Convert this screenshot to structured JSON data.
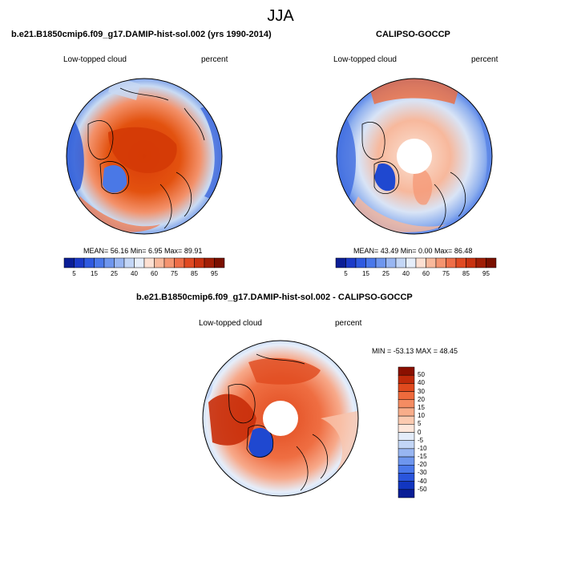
{
  "season": "JJA",
  "colors": {
    "dark_red": "#d83a08",
    "red": "#ed6a3c",
    "light_red": "#f7a98a",
    "pale": "#fcd8c8",
    "white": "#ffffff",
    "light_blue": "#c6d9f3",
    "blue": "#6e96e8",
    "dark_blue": "#2c5bd8",
    "land_line": "#000000"
  },
  "panel_model": {
    "title": "b.e21.B1850cmip6.f09_g17.DAMIP-hist-sol.002 (yrs 1990-2014)",
    "variable": "Low-topped cloud",
    "units": "percent",
    "stats": "MEAN=  56.16  Min=    6.95  Max=  89.91",
    "mean": 56.16,
    "min": 6.95,
    "max": 89.91
  },
  "panel_obs": {
    "title": "CALIPSO-GOCCP",
    "variable": "Low-topped cloud",
    "units": "percent",
    "stats": "MEAN=  43.49  Min=    0.00  Max=  86.48",
    "mean": 43.49,
    "min": 0.0,
    "max": 86.48
  },
  "panel_diff": {
    "title": "b.e21.B1850cmip6.f09_g17.DAMIP-hist-sol.002 - CALIPSO-GOCCP",
    "variable": "Low-topped cloud",
    "units": "percent",
    "stats": "MIN = -53.13 MAX =  48.45",
    "min": -53.13,
    "max": 48.45
  },
  "colorbar_abs": {
    "labels": [
      "5",
      "15",
      "25",
      "40",
      "60",
      "75",
      "85",
      "95"
    ],
    "colors": [
      "#0b1e96",
      "#1c3bc8",
      "#2f5ae0",
      "#4a78ea",
      "#6e96ee",
      "#98b6f2",
      "#c3d6f6",
      "#e6eefa",
      "#fde0d2",
      "#f9b99c",
      "#f49470",
      "#ee6e48",
      "#e04a22",
      "#c83210",
      "#a01e06",
      "#7a1000"
    ]
  },
  "colorbar_diff": {
    "labels": [
      "50",
      "40",
      "30",
      "20",
      "15",
      "10",
      "5",
      "0",
      "-5",
      "-10",
      "-15",
      "-20",
      "-30",
      "-40",
      "-50"
    ],
    "colors": [
      "#8b1000",
      "#c02a0a",
      "#e04a1e",
      "#ee6a3c",
      "#f48c62",
      "#f8ad8a",
      "#fbcab0",
      "#fde6da",
      "#e3ecfa",
      "#c3d6f6",
      "#98b6f2",
      "#6e96ee",
      "#4a78ea",
      "#2a55dc",
      "#1236c0",
      "#0a1e96"
    ]
  }
}
